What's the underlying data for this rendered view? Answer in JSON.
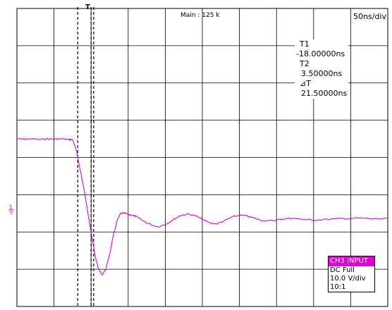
{
  "display": {
    "mode_label": "Main : 125 k",
    "timebase": "50ns/div",
    "trigger_marker": "T"
  },
  "cursors": {
    "t1_label": "T1",
    "t1_value": "-18.00000ns",
    "t2_label": "T2",
    "t2_value": "3.50000ns",
    "delta_label": "⊿T",
    "delta_value": "21.50000ns"
  },
  "channel_info": {
    "title": "CH3 INPUT",
    "coupling": "DC Full",
    "scale": "10.0 V/div",
    "probe": "10:1"
  },
  "colors": {
    "trace": "#e000d8",
    "grid": "#000000",
    "background": "#ffffff"
  },
  "chart_data": {
    "type": "line",
    "title": "",
    "xlabel": "",
    "ylabel": "",
    "x_unit": "ns",
    "y_unit": "V",
    "xlim": [
      -100,
      400
    ],
    "ylim": [
      -40,
      40
    ],
    "grid": true,
    "series": [
      {
        "x": [
          -100,
          -90,
          -80,
          -70,
          -60,
          -50,
          -40,
          -30,
          -25,
          -20,
          -15,
          -10,
          -5,
          0,
          5,
          10,
          15,
          20,
          25,
          30,
          35,
          40,
          45,
          50,
          55,
          60,
          70,
          80,
          90,
          100,
          110,
          120,
          130,
          140,
          150,
          160,
          170,
          180,
          190,
          200,
          210,
          220,
          230,
          240,
          250,
          260,
          270,
          280,
          290,
          300,
          320,
          340,
          360,
          380,
          400
        ],
        "y": [
          5.0,
          4.9,
          5.0,
          4.8,
          5.0,
          4.9,
          5.0,
          4.8,
          4.8,
          2.0,
          -3.0,
          -8.0,
          -14.0,
          -20.0,
          -26.0,
          -30.0,
          -31.5,
          -30.0,
          -26.0,
          -21.0,
          -17.0,
          -15.0,
          -15.0,
          -15.3,
          -15.5,
          -15.8,
          -17.0,
          -18.0,
          -18.6,
          -18.0,
          -16.8,
          -15.6,
          -15.2,
          -15.6,
          -16.6,
          -17.6,
          -17.8,
          -17.0,
          -16.0,
          -15.5,
          -15.7,
          -16.3,
          -16.9,
          -17.0,
          -16.8,
          -16.5,
          -16.3,
          -16.5,
          -16.7,
          -16.8,
          -16.6,
          -16.4,
          -16.3,
          -16.5,
          -16.4
        ]
      }
    ]
  }
}
